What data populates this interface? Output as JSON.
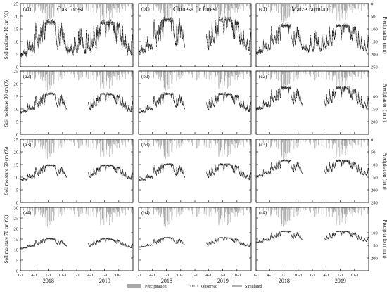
{
  "colors": {
    "precipitation": "#a9a9a9",
    "observed": "#111111",
    "simulated": "#555555",
    "axis": "#000000"
  },
  "chart_data": {
    "type": "line",
    "panel_titles": [
      "Oak forest",
      "Chinese fir forest",
      "Maize farmland"
    ],
    "panel_labels": [
      [
        "(a1)",
        "(b1)",
        "(c1)"
      ],
      [
        "(a2)",
        "(b2)",
        "(c2)"
      ],
      [
        "(a3)",
        "(b3)",
        "(c3)"
      ],
      [
        "(a4)",
        "(b4)",
        "(c4)"
      ]
    ],
    "ylabels_left": [
      "Soil moisture 10 cm (%)",
      "Soil moisture 30 cm (%)",
      "Soil moisture 50 cm (%)",
      "Soil moisture 70 cm (%)"
    ],
    "ylabels_right": [
      "Precipitation (mm)",
      "Precipitation (mm )",
      "Precipitation (mm)",
      "Precipitation ( mm)"
    ],
    "left_ticks": [
      [
        "0",
        "5",
        "10",
        "15",
        "20",
        "25"
      ],
      [
        "0",
        "5",
        "10",
        "15",
        "20",
        "25"
      ],
      [
        "0",
        "5",
        "10",
        "15",
        "20",
        "25"
      ],
      [
        "0",
        "5",
        "10",
        "15",
        "20",
        "25",
        "30"
      ]
    ],
    "left_ylim": [
      [
        0,
        25
      ],
      [
        0,
        25
      ],
      [
        0,
        25
      ],
      [
        0,
        30
      ]
    ],
    "right_ticks": [
      [
        "0",
        "50",
        "100",
        "150",
        "200",
        "250"
      ],
      [
        "100",
        "150",
        "200"
      ],
      [
        "0",
        "50",
        "100",
        "150",
        "200",
        "250"
      ],
      [
        "100",
        "150",
        "200"
      ]
    ],
    "right_tick_values": [
      [
        0,
        50,
        100,
        150,
        200,
        250
      ],
      [
        100,
        150,
        200
      ],
      [
        0,
        50,
        100,
        150,
        200,
        250
      ],
      [
        100,
        150,
        200
      ]
    ],
    "right_ylim": [
      [
        0,
        250
      ],
      [
        0,
        250
      ],
      [
        0,
        250
      ],
      [
        0,
        250
      ]
    ],
    "x_tick_labels": [
      "1-1",
      "4-1",
      "7-1",
      "10-1",
      "1-1",
      "4-1",
      "7-1",
      "10-1"
    ],
    "x_tick_days": [
      0,
      90,
      181,
      273,
      365,
      455,
      546,
      638
    ],
    "xlim_days": [
      0,
      730
    ],
    "years": [
      "2018",
      "2019"
    ],
    "year_label_days": [
      182,
      547
    ],
    "gap_days": [
      300,
      440
    ],
    "base_level": [
      [
        7.5,
        8.5,
        8.0
      ],
      [
        10.5,
        10.5,
        12.0
      ],
      [
        10.5,
        10.5,
        12.0
      ],
      [
        12.0,
        12.5,
        15.0
      ]
    ],
    "amplitude": [
      [
        5.0,
        5.0,
        4.0
      ],
      [
        2.5,
        2.5,
        3.0
      ],
      [
        1.8,
        2.0,
        2.0
      ],
      [
        1.2,
        1.2,
        1.5
      ]
    ],
    "legend": [
      "Precipitation",
      "Observed",
      "Simulated"
    ]
  }
}
